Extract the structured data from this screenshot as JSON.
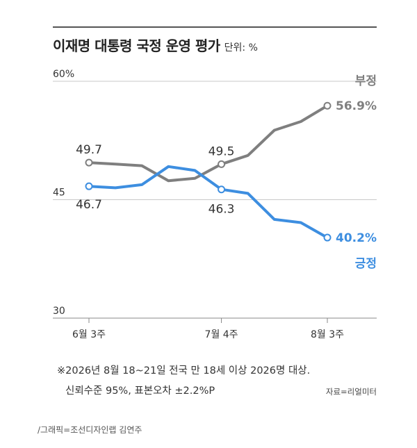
{
  "header": {
    "title": "이재명 대통령 국정 운영 평가",
    "unit": "단위: %"
  },
  "chart_data": {
    "type": "line",
    "x": [
      "6월 3주",
      "",
      "",
      "",
      "",
      "7월 4주",
      "",
      "",
      "",
      "8월 3주"
    ],
    "x_ticks": [
      "6월 3주",
      "7월 4주",
      "8월 3주"
    ],
    "y_ticks": [
      "60%",
      "45",
      "30"
    ],
    "ylim": [
      30,
      60
    ],
    "grid": true,
    "series": [
      {
        "name": "부정",
        "color": "#7f7f7f",
        "values": [
          49.7,
          49.5,
          49.3,
          47.4,
          47.7,
          49.5,
          50.6,
          53.8,
          54.9,
          56.9
        ]
      },
      {
        "name": "긍정",
        "color": "#3d8ee0",
        "values": [
          46.7,
          46.5,
          46.9,
          49.2,
          48.7,
          46.3,
          45.8,
          42.5,
          42.1,
          40.2
        ]
      }
    ],
    "labels": [
      {
        "text": "49.7",
        "series": 0,
        "index": 0
      },
      {
        "text": "49.5",
        "series": 0,
        "index": 5
      },
      {
        "text": "56.9%",
        "series": 0,
        "index": 9
      },
      {
        "text": "46.7",
        "series": 1,
        "index": 0
      },
      {
        "text": "46.3",
        "series": 1,
        "index": 5
      },
      {
        "text": "40.2%",
        "series": 1,
        "index": 9
      }
    ]
  },
  "footnote": {
    "line1": "※2026년 8월 18~21일 전국 만 18세 이상 2026명 대상.",
    "line2": "신뢰수준 95%, 표본오차 ±2.2%P"
  },
  "source": "자료=리얼미터",
  "credit": "/그래픽=조선디자인랩 김연주"
}
